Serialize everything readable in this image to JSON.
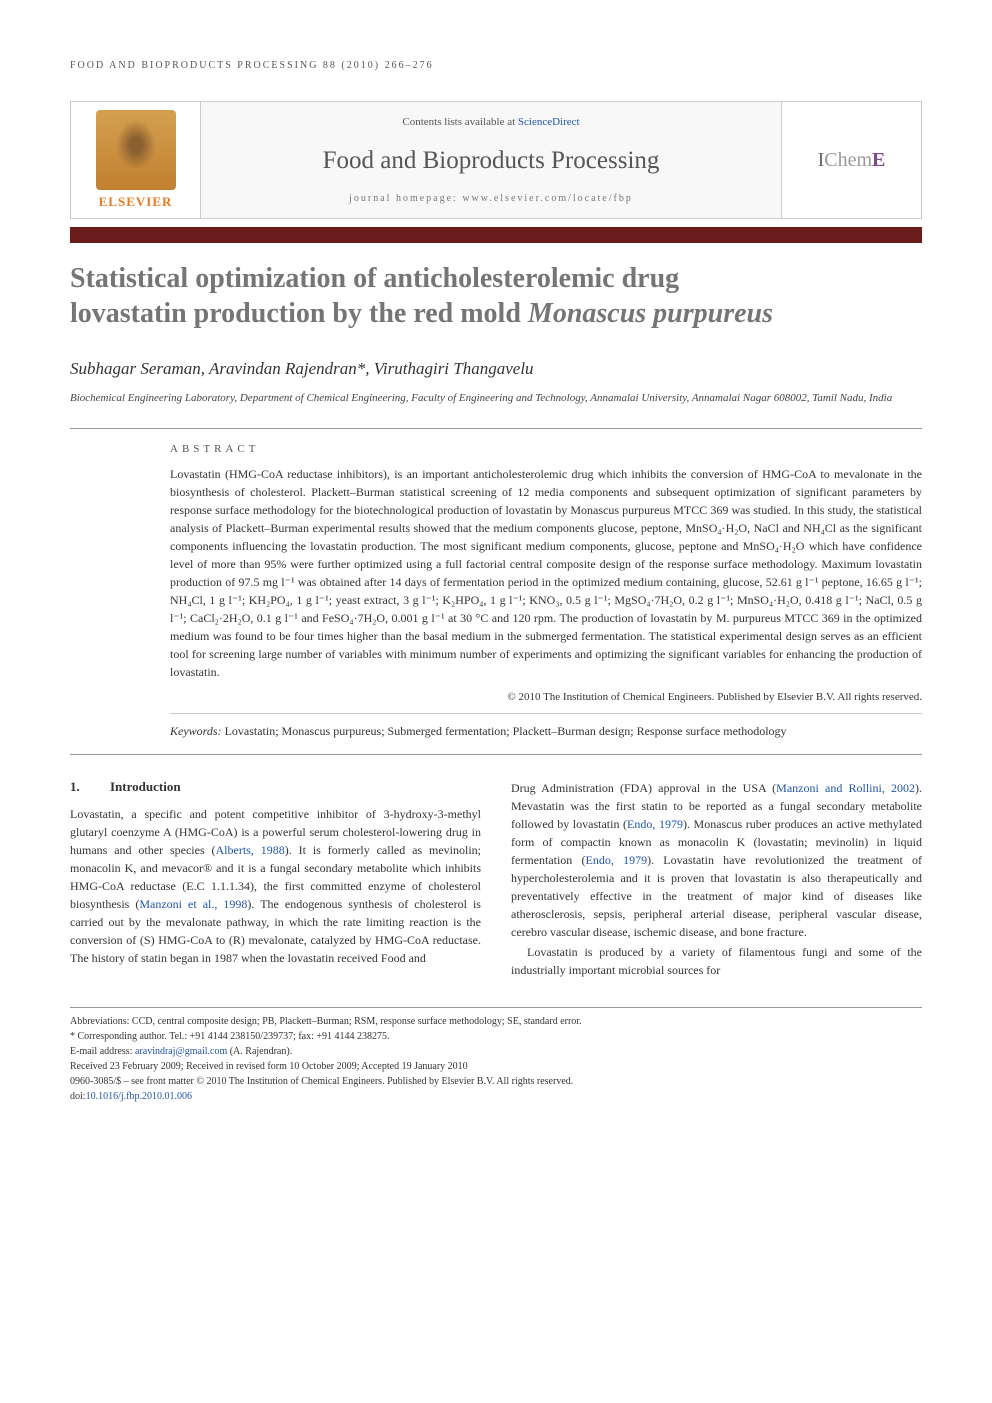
{
  "running_header": "FOOD AND BIOPRODUCTS PROCESSING 88 (2010) 266–276",
  "banner": {
    "sd_prefix": "Contents lists available at ",
    "sd_link": "ScienceDirect",
    "journal": "Food and Bioproducts Processing",
    "homepage": "journal homepage: www.elsevier.com/locate/fbp",
    "elsevier": "ELSEVIER",
    "icheme_i": "I",
    "icheme_chem": "Chem",
    "icheme_e": "E"
  },
  "title_line1": "Statistical optimization of anticholesterolemic drug",
  "title_line2_a": "lovastatin production by the red mold ",
  "title_line2_b": "Monascus purpureus",
  "authors": "Subhagar Seraman, Aravindan Rajendran*, Viruthagiri Thangavelu",
  "affiliation": "Biochemical Engineering Laboratory, Department of Chemical Engineering, Faculty of Engineering and Technology, Annamalai University, Annamalai Nagar 608002, Tamil Nadu, India",
  "abstract": {
    "heading": "ABSTRACT",
    "body": "Lovastatin (HMG-CoA reductase inhibitors), is an important anticholesterolemic drug which inhibits the conversion of HMG-CoA to mevalonate in the biosynthesis of cholesterol. Plackett–Burman statistical screening of 12 media components and subsequent optimization of significant parameters by response surface methodology for the biotechnological production of lovastatin by Monascus purpureus MTCC 369 was studied. In this study, the statistical analysis of Plackett–Burman experimental results showed that the medium components glucose, peptone, MnSO₄·H₂O, NaCl and NH₄Cl as the significant components influencing the lovastatin production. The most significant medium components, glucose, peptone and MnSO₄·H₂O which have confidence level of more than 95% were further optimized using a full factorial central composite design of the response surface methodology. Maximum lovastatin production of 97.5 mg l⁻¹ was obtained after 14 days of fermentation period in the optimized medium containing, glucose, 52.61 g l⁻¹ peptone, 16.65 g l⁻¹; NH₄Cl, 1 g l⁻¹; KH₂PO₄, 1 g l⁻¹; yeast extract, 3 g l⁻¹; K₂HPO₄, 1 g l⁻¹; KNO₃, 0.5 g l⁻¹; MgSO₄·7H₂O, 0.2 g l⁻¹; MnSO₄·H₂O, 0.418 g l⁻¹; NaCl, 0.5 g l⁻¹; CaCl₂·2H₂O, 0.1 g l⁻¹ and FeSO₄·7H₂O, 0.001 g l⁻¹ at 30 °C and 120 rpm. The production of lovastatin by M. purpureus MTCC 369 in the optimized medium was found to be four times higher than the basal medium in the submerged fermentation. The statistical experimental design serves as an efficient tool for screening large number of variables with minimum number of experiments and optimizing the significant variables for enhancing the production of lovastatin.",
    "copyright": "© 2010 The Institution of Chemical Engineers. Published by Elsevier B.V. All rights reserved.",
    "kw_label": "Keywords:",
    "kw_text": " Lovastatin; Monascus purpureus; Submerged fermentation; Plackett–Burman design; Response surface methodology"
  },
  "section1": {
    "num": "1.",
    "heading": "Introduction"
  },
  "col1": {
    "p1a": "Lovastatin, a specific and potent competitive inhibitor of 3-hydroxy-3-methyl glutaryl coenzyme A (HMG-CoA) is a powerful serum cholesterol-lowering drug in humans and other species (",
    "c1": "Alberts, 1988",
    "p1b": "). It is formerly called as mevinolin; monacolin K, and mevacor® and it is a fungal secondary metabolite which inhibits HMG-CoA reductase (E.C 1.1.1.34), the first committed enzyme of cholesterol biosynthesis (",
    "c2": "Manzoni et al., 1998",
    "p1c": "). The endogenous synthesis of cholesterol is carried out by the mevalonate pathway, in which the rate limiting reaction is the conversion of (S) HMG-CoA to (R) mevalonate, catalyzed by HMG-CoA reductase. The history of statin began in 1987 when the lovastatin received Food and"
  },
  "col2": {
    "p1a": "Drug Administration (FDA) approval in the USA (",
    "c1": "Manzoni and Rollini, 2002",
    "p1b": "). Mevastatin was the first statin to be reported as a fungal secondary metabolite followed by lovastatin (",
    "c2": "Endo, 1979",
    "p1c": "). Monascus ruber produces an active methylated form of compactin known as monacolin K (lovastatin; mevinolin) in liquid fermentation (",
    "c3": "Endo, 1979",
    "p1d": "). Lovastatin have revolutionized the treatment of hypercholesterolemia and it is proven that lovastatin is also therapeutically and preventatively effective in the treatment of major kind of diseases like atherosclerosis, sepsis, peripheral arterial disease, peripheral vascular disease, cerebro vascular disease, ischemic disease, and bone fracture.",
    "p2": "Lovastatin is produced by a variety of filamentous fungi and some of the industrially important microbial sources for"
  },
  "footnotes": {
    "abbr": "Abbreviations: CCD, central composite design; PB, Plackett–Burman; RSM, response surface methodology; SE, standard error.",
    "corr": "* Corresponding author. Tel.: +91 4144 238150/239737; fax: +91 4144 238275.",
    "email_label": "E-mail address: ",
    "email": "aravindraj@gmail.com",
    "email_tail": " (A. Rajendran).",
    "received": "Received 23 February 2009; Received in revised form 10 October 2009; Accepted 19 January 2010",
    "issn": "0960-3085/$ – see front matter © 2010 The Institution of Chemical Engineers. Published by Elsevier B.V. All rights reserved.",
    "doi_label": "doi:",
    "doi": "10.1016/j.fbp.2010.01.006"
  },
  "colors": {
    "maroon": "#6b1d1d",
    "title_gray": "#757575",
    "link_blue": "#2255aa",
    "elsevier_orange": "#e67a20"
  }
}
